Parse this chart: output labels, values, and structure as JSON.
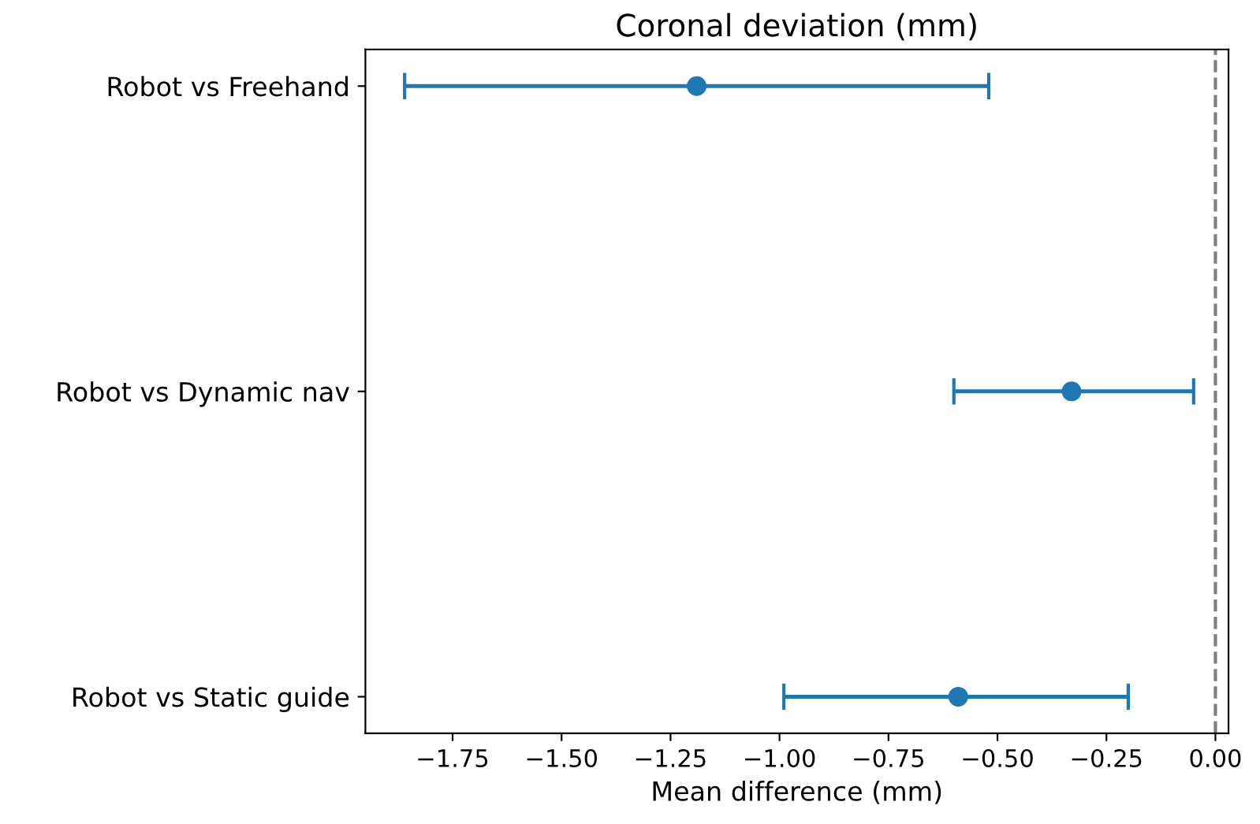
{
  "chart_data": {
    "type": "scatter",
    "orientation": "horizontal",
    "title": "Coronal deviation (mm)",
    "xlabel": "Mean difference (mm)",
    "categories": [
      "Robot vs Freehand",
      "Robot vs Dynamic nav",
      "Robot vs Static guide"
    ],
    "values": [
      -1.19,
      -0.33,
      -0.59
    ],
    "errors": [
      [
        -1.86,
        -0.52
      ],
      [
        -0.6,
        -0.05
      ],
      [
        -0.99,
        -0.2
      ]
    ],
    "color": "#1f77b4",
    "marker": "circle",
    "xlim": [
      -1.95,
      0.03
    ],
    "xticks": [
      {
        "value": -1.75,
        "label": "−1.75"
      },
      {
        "value": -1.5,
        "label": "−1.50"
      },
      {
        "value": -1.25,
        "label": "−1.25"
      },
      {
        "value": -1.0,
        "label": "−1.00"
      },
      {
        "value": -0.75,
        "label": "−0.75"
      },
      {
        "value": -0.5,
        "label": "−0.50"
      },
      {
        "value": -0.25,
        "label": "−0.25"
      },
      {
        "value": 0,
        "label": "0.00"
      }
    ],
    "ref_lines": [
      {
        "axis": "x",
        "value": 0,
        "label": null,
        "color": "#808080",
        "line_style": "dashed"
      }
    ],
    "grid": false
  }
}
